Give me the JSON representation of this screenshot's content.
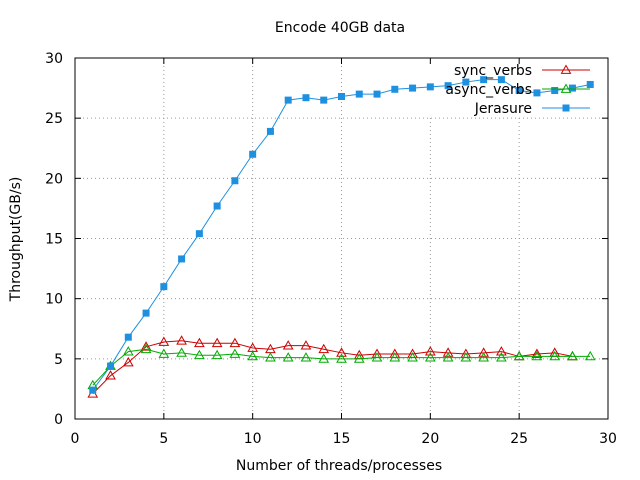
{
  "chart_data": {
    "type": "line",
    "title": "Encode 40GB data",
    "xlabel": "Number of threads/processes",
    "ylabel": "Throughput(GB/s)",
    "xlim": [
      0,
      30
    ],
    "ylim": [
      0,
      30
    ],
    "xticks": [
      "0",
      "5",
      "10",
      "15",
      "20",
      "25",
      "30"
    ],
    "yticks": [
      "0",
      "5",
      "10",
      "15",
      "20",
      "25",
      "30"
    ],
    "grid": true,
    "legend_position": "top-right",
    "series": [
      {
        "name": "sync_verbs",
        "color": "#cc0000",
        "marker": "open-triangle",
        "x": [
          1,
          2,
          3,
          4,
          5,
          6,
          7,
          8,
          9,
          10,
          11,
          12,
          13,
          14,
          15,
          16,
          17,
          18,
          19,
          20,
          21,
          22,
          23,
          24,
          25,
          26,
          27,
          28
        ],
        "values": [
          2.1,
          3.6,
          4.7,
          6.0,
          6.4,
          6.5,
          6.3,
          6.3,
          6.3,
          5.9,
          5.8,
          6.1,
          6.1,
          5.8,
          5.5,
          5.3,
          5.4,
          5.4,
          5.4,
          5.6,
          5.5,
          5.4,
          5.5,
          5.6,
          5.2,
          5.4,
          5.5,
          5.2
        ]
      },
      {
        "name": "async_verbs",
        "color": "#00aa00",
        "marker": "open-triangle",
        "x": [
          1,
          2,
          3,
          4,
          5,
          6,
          7,
          8,
          9,
          10,
          11,
          12,
          13,
          14,
          15,
          16,
          17,
          18,
          19,
          20,
          21,
          22,
          23,
          24,
          25,
          26,
          27,
          28,
          29
        ],
        "values": [
          2.8,
          4.4,
          5.6,
          5.8,
          5.4,
          5.5,
          5.3,
          5.3,
          5.4,
          5.2,
          5.1,
          5.1,
          5.1,
          5.0,
          5.0,
          5.0,
          5.1,
          5.1,
          5.1,
          5.1,
          5.1,
          5.1,
          5.1,
          5.1,
          5.2,
          5.2,
          5.2,
          5.2,
          5.2
        ]
      },
      {
        "name": "Jerasure",
        "color": "#1e90e0",
        "marker": "filled-square",
        "x": [
          1,
          2,
          3,
          4,
          5,
          6,
          7,
          8,
          9,
          10,
          11,
          12,
          13,
          14,
          15,
          16,
          17,
          18,
          19,
          20,
          21,
          22,
          23,
          24,
          25,
          26,
          27,
          28,
          29
        ],
        "values": [
          2.4,
          4.4,
          6.8,
          8.8,
          11.0,
          13.3,
          15.4,
          17.7,
          19.8,
          22.0,
          23.9,
          26.5,
          26.7,
          26.5,
          26.8,
          27.0,
          27.0,
          27.4,
          27.5,
          27.6,
          27.7,
          28.0,
          28.2,
          28.2,
          27.3,
          27.1,
          27.3,
          27.5,
          27.8
        ]
      }
    ]
  }
}
